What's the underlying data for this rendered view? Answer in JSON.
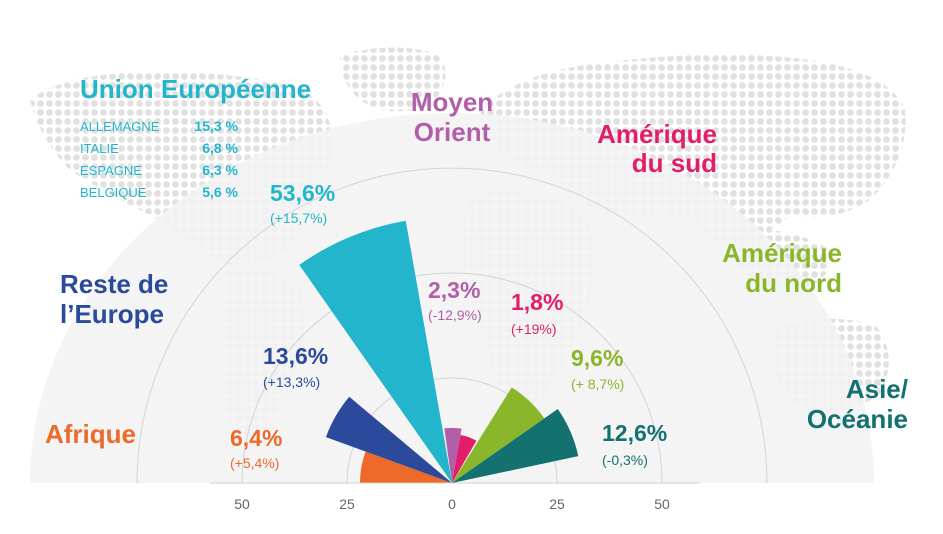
{
  "chart_data": {
    "type": "polar-area",
    "unit": "%",
    "axis": {
      "ticks_left": [
        "50",
        "25"
      ],
      "tick_center": "0",
      "ticks_right": [
        "25",
        "50"
      ],
      "rmax": 75,
      "rings": [
        25,
        50,
        75
      ]
    },
    "segments": [
      {
        "region_lines": [
          "Afrique"
        ],
        "value": 6.4,
        "value_label": "6,4%",
        "change": "(+5,4%)",
        "color": "#ee6a2a",
        "start_deg": 0,
        "end_deg": 20
      },
      {
        "region_lines": [
          "Reste de",
          "l’Europe"
        ],
        "value": 13.6,
        "value_label": "13,6%",
        "change": "(+13,3%)",
        "color": "#2b4a9b",
        "start_deg": 20,
        "end_deg": 40
      },
      {
        "region_lines": [
          "Union Européenne"
        ],
        "value": 53.6,
        "value_label": "53,6%",
        "change": "(+15,7%)",
        "color": "#23b5cc",
        "start_deg": 55,
        "end_deg": 80,
        "breakdown": [
          {
            "country": "ALLEMAGNE",
            "value": "15,3 %"
          },
          {
            "country": "ITALIE",
            "value": "6,8 %"
          },
          {
            "country": "ESPAGNE",
            "value": "6,3 %"
          },
          {
            "country": "BELGIQUE",
            "value": "5,6 %"
          }
        ]
      },
      {
        "region_lines": [
          "Moyen",
          "Orient"
        ],
        "value": 2.3,
        "value_label": "2,3%",
        "change": "(-12,9%)",
        "color": "#b25fa9",
        "start_deg": 82,
        "end_deg": 100
      },
      {
        "region_lines": [
          "Amérique",
          "du sud"
        ],
        "value": 1.8,
        "value_label": "1,8%",
        "change": "(+19%)",
        "color": "#e21e6a",
        "start_deg": 100,
        "end_deg": 120
      },
      {
        "region_lines": [
          "Amérique",
          "du nord"
        ],
        "value": 9.6,
        "value_label": "9,6%",
        "change": "(+ 8,7%)",
        "color": "#8ab62b",
        "start_deg": 122,
        "end_deg": 145
      },
      {
        "region_lines": [
          "Asie/",
          "Océanie"
        ],
        "value": 12.6,
        "value_label": "12,6%",
        "change": "(-0,3%)",
        "color": "#13716f",
        "start_deg": 145,
        "end_deg": 168
      }
    ]
  }
}
